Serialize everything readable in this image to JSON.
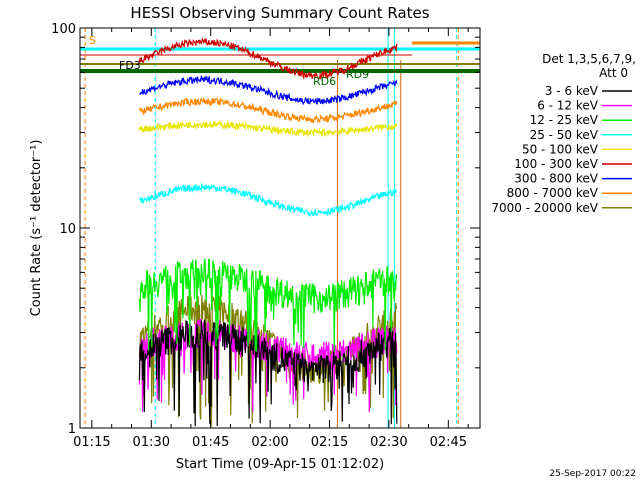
{
  "chart_data": {
    "type": "line",
    "title": "HESSI Observing Summary Count Rates",
    "xlabel": "Start Time (09-Apr-15 01:12:02)",
    "ylabel": "Count Rate (s⁻¹ detector⁻¹)",
    "yscale": "log",
    "ylim": [
      1,
      100
    ],
    "xlim": [
      "01:12",
      "02:53"
    ],
    "x_ticks": [
      "01:15",
      "01:30",
      "01:45",
      "02:00",
      "02:15",
      "02:30",
      "02:45"
    ],
    "y_ticks": [
      "1",
      "10",
      "100"
    ],
    "legend_header": [
      "Det 1,3,5,6,7,9,",
      "Att 0"
    ],
    "legend_position": "right",
    "grid": false,
    "series": [
      {
        "name": "3 - 6 keV",
        "color": "#000000",
        "level": [
          2,
          3
        ]
      },
      {
        "name": "6 - 12 keV",
        "color": "#ff00ff",
        "level": [
          2.3,
          3
        ]
      },
      {
        "name": "12 - 25 keV",
        "color": "#00ee00",
        "level": [
          4.5,
          6
        ]
      },
      {
        "name": "25 - 50 keV",
        "color": "#00ffff",
        "level": [
          12,
          16
        ]
      },
      {
        "name": "50 - 100 keV",
        "color": "#e6e600",
        "level": [
          30,
          33
        ]
      },
      {
        "name": "100 - 300 keV",
        "color": "#cc0000",
        "level": [
          58,
          85
        ]
      },
      {
        "name": "300 - 800 keV",
        "color": "#0000ff",
        "level": [
          43,
          55
        ]
      },
      {
        "name": "800 - 7000 keV",
        "color": "#ff8800",
        "level": [
          35,
          43
        ]
      },
      {
        "name": "7000 - 20000 keV",
        "color": "#808000",
        "level": [
          2,
          4
        ]
      }
    ],
    "flag_labels": [
      "S",
      "FD3",
      "RD6",
      "RD9"
    ],
    "timestamp": "25-Sep-2017 00:22"
  }
}
